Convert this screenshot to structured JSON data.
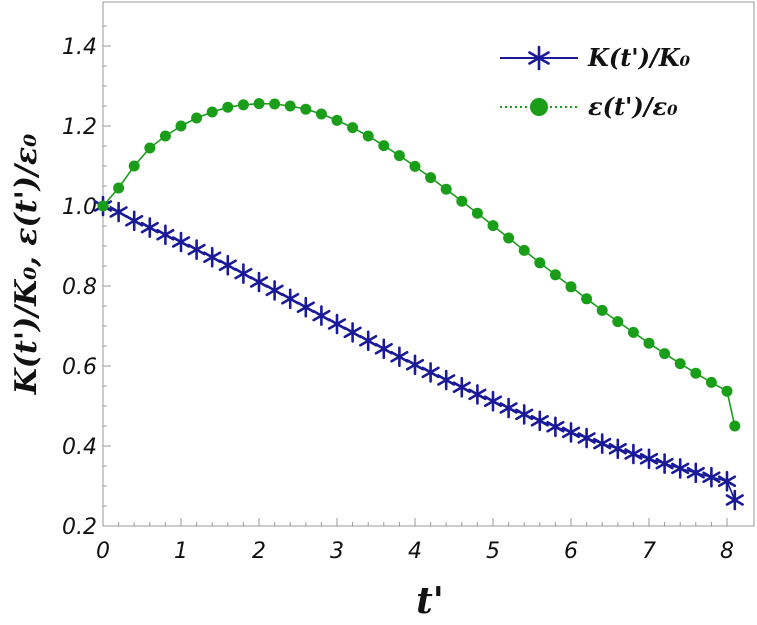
{
  "chart_data": {
    "type": "line",
    "xlabel": "t'",
    "ylabel": "K(t')/K₀, ε(t')/ε₀",
    "xlim": [
      0,
      8.1
    ],
    "ylim": [
      0.2,
      1.5
    ],
    "xticks": [
      "0",
      "1",
      "2",
      "3",
      "4",
      "5",
      "6",
      "7",
      "8"
    ],
    "yticks": [
      "0.2",
      "0.4",
      "0.6",
      "0.8",
      "1.0",
      "1.2",
      "1.4"
    ],
    "grid": false,
    "legend_position": "top-right",
    "series": [
      {
        "name": "K(t')/K₀",
        "color": "#1a1a99",
        "marker": "star",
        "line": "solid",
        "x": [
          0.0,
          0.2,
          0.4,
          0.6,
          0.8,
          1.0,
          1.2,
          1.4,
          1.6,
          1.8,
          2.0,
          2.2,
          2.4,
          2.6,
          2.8,
          3.0,
          3.2,
          3.4,
          3.6,
          3.8,
          4.0,
          4.2,
          4.4,
          4.6,
          4.8,
          5.0,
          5.2,
          5.4,
          5.6,
          5.8,
          6.0,
          6.2,
          6.4,
          6.6,
          6.8,
          7.0,
          7.2,
          7.4,
          7.6,
          7.8,
          8.0,
          8.1
        ],
        "values": [
          1.0,
          0.985,
          0.963,
          0.946,
          0.928,
          0.91,
          0.891,
          0.872,
          0.852,
          0.831,
          0.81,
          0.789,
          0.768,
          0.747,
          0.726,
          0.705,
          0.684,
          0.663,
          0.643,
          0.623,
          0.603,
          0.584,
          0.565,
          0.547,
          0.529,
          0.512,
          0.495,
          0.479,
          0.463,
          0.448,
          0.434,
          0.42,
          0.406,
          0.393,
          0.38,
          0.368,
          0.356,
          0.344,
          0.333,
          0.322,
          0.312,
          0.265
        ]
      },
      {
        "name": "ε(t')/ε₀",
        "color": "#1a9e1a",
        "marker": "circle",
        "line": "solid",
        "legend_line": "dotted",
        "x": [
          0.0,
          0.2,
          0.4,
          0.6,
          0.8,
          1.0,
          1.2,
          1.4,
          1.6,
          1.8,
          2.0,
          2.2,
          2.4,
          2.6,
          2.8,
          3.0,
          3.2,
          3.4,
          3.6,
          3.8,
          4.0,
          4.2,
          4.4,
          4.6,
          4.8,
          5.0,
          5.2,
          5.4,
          5.6,
          5.8,
          6.0,
          6.2,
          6.4,
          6.6,
          6.8,
          7.0,
          7.2,
          7.4,
          7.6,
          7.8,
          8.0,
          8.1
        ],
        "values": [
          1.0,
          1.045,
          1.1,
          1.145,
          1.175,
          1.2,
          1.22,
          1.235,
          1.247,
          1.253,
          1.256,
          1.255,
          1.25,
          1.242,
          1.23,
          1.214,
          1.196,
          1.175,
          1.151,
          1.126,
          1.099,
          1.071,
          1.042,
          1.012,
          0.982,
          0.951,
          0.92,
          0.889,
          0.858,
          0.828,
          0.798,
          0.768,
          0.739,
          0.711,
          0.684,
          0.657,
          0.631,
          0.606,
          0.582,
          0.559,
          0.537,
          0.45
        ]
      }
    ]
  }
}
